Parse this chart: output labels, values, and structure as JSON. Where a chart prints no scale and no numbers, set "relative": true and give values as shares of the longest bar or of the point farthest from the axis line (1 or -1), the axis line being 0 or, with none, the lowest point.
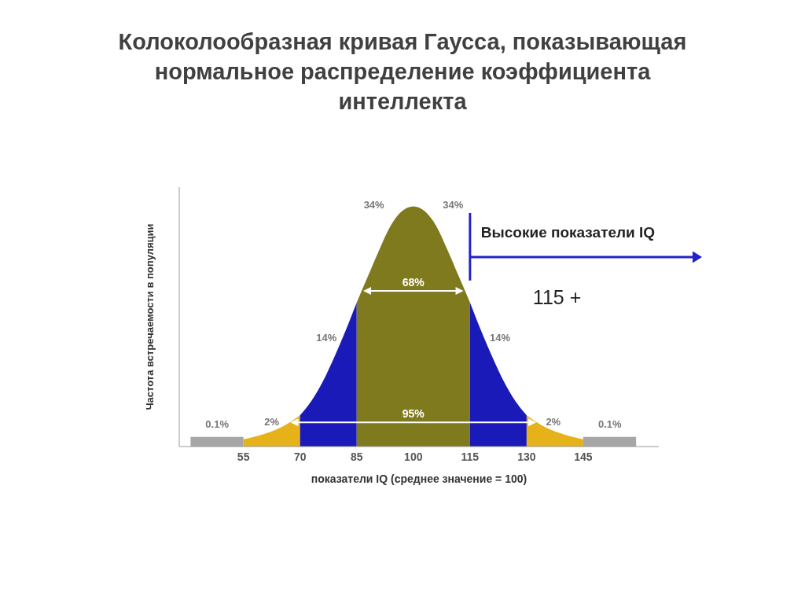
{
  "chart_data": {
    "type": "area",
    "title": "Колоколообразная кривая Гаусса, показывающая нормальное распределение коэффициента интеллекта",
    "xlabel": "показатели IQ (среднее значение = 100)",
    "ylabel": "Частота встречаемости в популяции",
    "relative": true,
    "xlim": [
      38,
      165
    ],
    "xticks": [
      55,
      70,
      85,
      100,
      115,
      130,
      145
    ],
    "series": [
      {
        "color": "#a6a6a6",
        "x": [
          41,
          55
        ],
        "values": [
          0.04,
          0.04
        ]
      },
      {
        "color": "#e5b219",
        "x": [
          55,
          60,
          65,
          70
        ],
        "values": [
          0.03,
          0.05,
          0.08,
          0.13
        ]
      },
      {
        "color": "#1a1ab8",
        "x": [
          70,
          73,
          76,
          79,
          82,
          85
        ],
        "values": [
          0.13,
          0.19,
          0.27,
          0.37,
          0.48,
          0.6
        ]
      },
      {
        "color": "#807a1e",
        "x": [
          85,
          88,
          91,
          94,
          97,
          100,
          103,
          106,
          109,
          112,
          115
        ],
        "values": [
          0.6,
          0.71,
          0.82,
          0.92,
          0.98,
          1,
          0.98,
          0.92,
          0.82,
          0.71,
          0.6
        ]
      },
      {
        "color": "#1a1ab8",
        "x": [
          115,
          118,
          121,
          124,
          127,
          130
        ],
        "values": [
          0.6,
          0.48,
          0.37,
          0.27,
          0.19,
          0.13
        ]
      },
      {
        "color": "#e5b219",
        "x": [
          130,
          135,
          140,
          145
        ],
        "values": [
          0.13,
          0.08,
          0.05,
          0.03
        ]
      },
      {
        "color": "#a6a6a6",
        "x": [
          145,
          159
        ],
        "values": [
          0.04,
          0.04
        ]
      }
    ],
    "ref_lines": [
      {
        "axis": "x",
        "value": 115,
        "label": "Высокие показатели IQ",
        "color": "#2222cc"
      }
    ],
    "annotations": [
      "0.1%",
      "2%",
      "14%",
      "34%",
      "34%",
      "14%",
      "2%",
      "0.1%",
      "68%",
      "95%",
      "115 +"
    ]
  }
}
